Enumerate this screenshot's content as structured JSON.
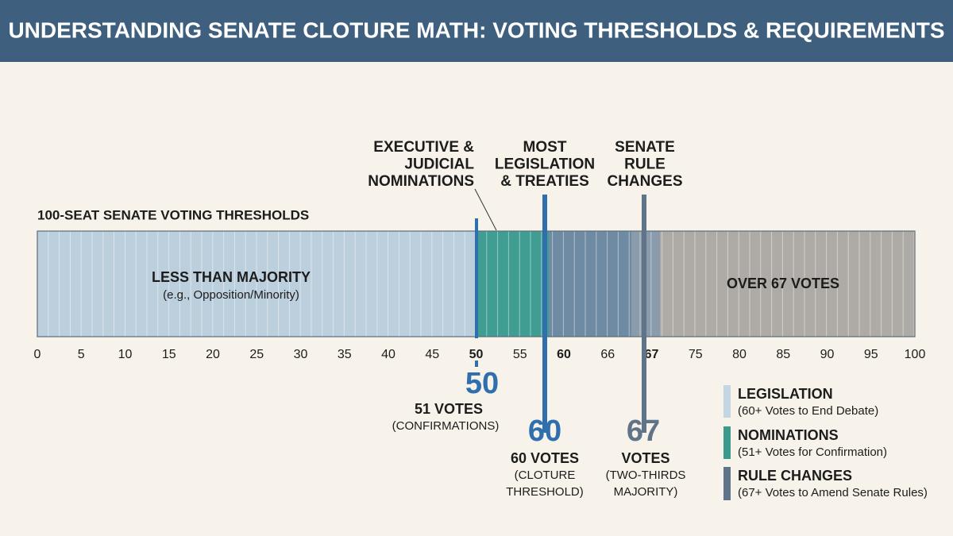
{
  "header": {
    "title": "UNDERSTANDING SENATE CLOTURE MATH: VOTING THRESHOLDS & REQUIREMENTS"
  },
  "scale": {
    "title": "100-SEAT SENATE VOTING THRESHOLDS",
    "ticks": [
      "0",
      "5",
      "10",
      "15",
      "20",
      "25",
      "30",
      "35",
      "40",
      "45",
      "50",
      "55",
      "60",
      "66",
      "67",
      "75",
      "80",
      "85",
      "90",
      "95",
      "100"
    ],
    "regions": [
      {
        "label": "LESS THAN MAJORITY",
        "sublabel": "(e.g., Opposition/Minority)"
      },
      {
        "label": "OVER 67 VOTES"
      }
    ]
  },
  "callouts": [
    {
      "lines": [
        "EXECUTIVE &",
        "JUDICIAL",
        "NOMINATIONS"
      ]
    },
    {
      "lines": [
        "MOST",
        "LEGISLATION",
        "& TREATIES"
      ]
    },
    {
      "lines": [
        "SENATE",
        "RULE",
        "CHANGES"
      ]
    }
  ],
  "thresholds": [
    {
      "number": "50",
      "votes": "51 VOTES",
      "note": [
        "(CONFIRMATIONS)"
      ]
    },
    {
      "number": "60",
      "votes": "60 VOTES",
      "note": [
        "(CLOTURE",
        "THRESHOLD)"
      ]
    },
    {
      "number": "67",
      "votes": "VOTES",
      "note": [
        "(TWO-THIRDS",
        "MAJORITY)"
      ]
    }
  ],
  "legend": [
    {
      "title": "LEGISLATION",
      "desc": "(60+ Votes to End Debate)"
    },
    {
      "title": "NOMINATIONS",
      "desc": "(51+ Votes for Confirmation)"
    },
    {
      "title": "RULE CHANGES",
      "desc": "(67+ Votes to Amend Senate Rules)"
    }
  ]
}
